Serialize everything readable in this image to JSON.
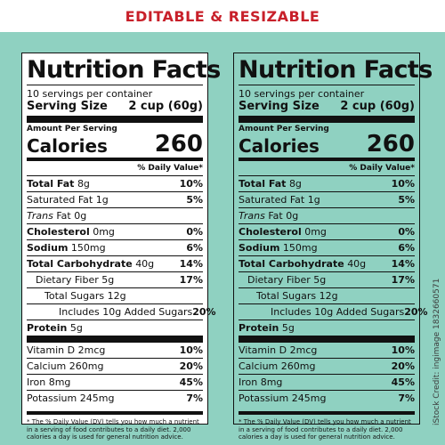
{
  "banner": "EDITABLE & RESIZABLE",
  "stock_id": "iStock Credit: ingimage 1832660571",
  "label": {
    "title": "Nutrition Facts",
    "servings": "10 servings per container",
    "serving_size_label": "Serving Size",
    "serving_size_value": "2 cup (60g)",
    "amount_per_serving": "Amount Per Serving",
    "calories_label": "Calories",
    "calories_value": "260",
    "daily_value_header": "% Daily Value*",
    "total_fat": {
      "label": "Total Fat",
      "amount": "8g",
      "pct": "10%"
    },
    "saturated_fat": {
      "label": "Saturated Fat 1g",
      "pct": "5%"
    },
    "trans_fat": {
      "label": "Trans",
      "amount": "Fat 0g"
    },
    "cholesterol": {
      "label": "Cholesterol",
      "amount": "0mg",
      "pct": "0%"
    },
    "sodium": {
      "label": "Sodium",
      "amount": "150mg",
      "pct": "6%"
    },
    "total_carb": {
      "label": "Total Carbohydrate",
      "amount": "40g",
      "pct": "14%"
    },
    "dietary_fiber": {
      "label": "Dietary Fiber 5g",
      "pct": "17%"
    },
    "total_sugars": {
      "label": "Total Sugars 12g"
    },
    "added_sugars": {
      "label": "Includes 10g Added Sugars",
      "pct": "20%"
    },
    "protein": {
      "label": "Protein",
      "amount": "5g"
    },
    "vitamin_d": {
      "label": "Vitamin D 2mcg",
      "pct": "10%"
    },
    "calcium": {
      "label": "Calcium 260mg",
      "pct": "20%"
    },
    "iron": {
      "label": "Iron 8mg",
      "pct": "45%"
    },
    "potassium": {
      "label": "Potassium 245mg",
      "pct": "7%"
    },
    "footnote": "* The % Daily Value (DV) tells you how much a nutrient in a serving of food contributes to a daily diet. 2,000 calories a day is used for general nutrition advice."
  },
  "colors": {
    "background": "#8fd1c1",
    "banner_text": "#c8202a",
    "label_white": "#ffffff",
    "ink": "#111111"
  }
}
